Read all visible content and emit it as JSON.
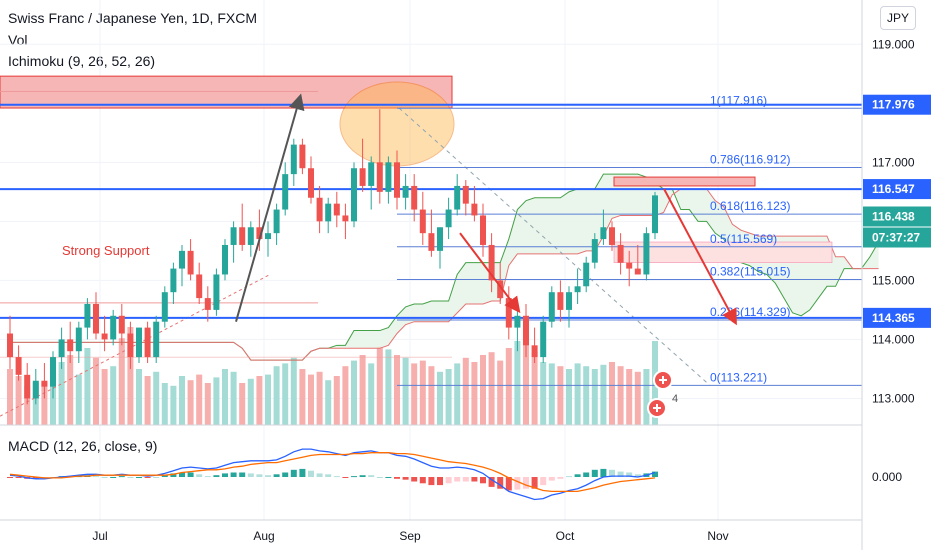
{
  "header": {
    "title": "Swiss Franc / Japanese Yen, 1D, FXCM",
    "vol_label": "Vol",
    "ichimoku_label": "Ichimoku (9, 26, 52, 26)"
  },
  "currency_button": "JPY",
  "macd_label": "MACD (12, 26, close, 9)",
  "colors": {
    "up": "#26a69a",
    "down": "#ef5350",
    "blue_line": "#2962ff",
    "cloud": "#e8f5e9",
    "annotation_red": "#e53935",
    "arrow_gray": "#555555"
  },
  "chart_data": [
    {
      "type": "candlestick",
      "title": "Swiss Franc / Japanese Yen, 1D, FXCM",
      "x_ticks": [
        "Jul",
        "Aug",
        "Sep",
        "Oct",
        "Nov"
      ],
      "y_ticks": [
        "119.000",
        "118.000",
        "117.000",
        "116.000",
        "115.000",
        "114.000",
        "113.000"
      ],
      "ylim": [
        112.55,
        119.75
      ],
      "annotation_text": "Strong Support",
      "price_labels": [
        {
          "text": "117.976",
          "value": 117.976,
          "style": "blue"
        },
        {
          "text": "116.547",
          "value": 116.547,
          "style": "blue"
        },
        {
          "text": "116.438",
          "value": 116.438,
          "style": "teal"
        },
        {
          "text": "07:37:27",
          "value": 116.15,
          "style": "teal"
        },
        {
          "text": "114.365",
          "value": 114.365,
          "style": "blue"
        }
      ],
      "horizontal_levels": [
        117.976,
        116.547,
        114.365
      ],
      "fibonacci": [
        {
          "text": "1(117.916)",
          "value": 117.916
        },
        {
          "text": "0.786(116.912)",
          "value": 116.912
        },
        {
          "text": "0.618(116.123)",
          "value": 116.123
        },
        {
          "text": "0.5(115.569)",
          "value": 115.569
        },
        {
          "text": "0.382(115.015)",
          "value": 115.015
        },
        {
          "text": "0.236(114.329)",
          "value": 114.329
        },
        {
          "text": "0(113.221)",
          "value": 113.221
        }
      ],
      "event_badge": "4",
      "candles": [
        [
          114.1,
          114.4,
          113.5,
          113.7
        ],
        [
          113.7,
          113.9,
          113.3,
          113.4
        ],
        [
          113.4,
          113.6,
          112.9,
          113.0
        ],
        [
          113.0,
          113.5,
          112.9,
          113.3
        ],
        [
          113.3,
          113.6,
          113.0,
          113.2
        ],
        [
          113.2,
          113.8,
          113.0,
          113.7
        ],
        [
          113.7,
          114.2,
          113.5,
          114.0
        ],
        [
          114.0,
          114.3,
          113.6,
          113.8
        ],
        [
          113.8,
          114.3,
          113.6,
          114.2
        ],
        [
          114.2,
          114.7,
          114.0,
          114.6
        ],
        [
          114.6,
          114.8,
          114.0,
          114.1
        ],
        [
          114.1,
          114.4,
          113.8,
          114.0
        ],
        [
          114.0,
          114.5,
          113.9,
          114.4
        ],
        [
          114.4,
          114.6,
          113.9,
          114.1
        ],
        [
          114.1,
          114.3,
          113.5,
          113.7
        ],
        [
          113.7,
          114.2,
          113.6,
          114.2
        ],
        [
          114.2,
          114.3,
          113.6,
          113.7
        ],
        [
          113.7,
          114.4,
          113.6,
          114.3
        ],
        [
          114.3,
          114.9,
          114.2,
          114.8
        ],
        [
          114.8,
          115.3,
          114.6,
          115.2
        ],
        [
          115.2,
          115.6,
          114.9,
          115.5
        ],
        [
          115.5,
          115.7,
          115.0,
          115.1
        ],
        [
          115.1,
          115.3,
          114.6,
          114.7
        ],
        [
          114.7,
          114.9,
          114.3,
          114.5
        ],
        [
          114.5,
          115.2,
          114.4,
          115.1
        ],
        [
          115.1,
          115.7,
          115.0,
          115.6
        ],
        [
          115.6,
          116.0,
          115.3,
          115.9
        ],
        [
          115.9,
          116.3,
          115.5,
          115.6
        ],
        [
          115.6,
          116.0,
          115.4,
          115.9
        ],
        [
          115.9,
          116.2,
          115.5,
          115.7
        ],
        [
          115.7,
          116.0,
          115.4,
          115.8
        ],
        [
          115.8,
          116.3,
          115.6,
          116.2
        ],
        [
          116.2,
          117.0,
          116.1,
          116.8
        ],
        [
          116.8,
          117.4,
          116.6,
          117.3
        ],
        [
          117.3,
          117.4,
          116.8,
          116.9
        ],
        [
          116.9,
          117.1,
          116.3,
          116.4
        ],
        [
          116.4,
          116.6,
          115.8,
          116.0
        ],
        [
          116.0,
          116.4,
          115.8,
          116.3
        ],
        [
          116.3,
          116.5,
          115.9,
          116.1
        ],
        [
          116.1,
          116.3,
          115.7,
          116.0
        ],
        [
          116.0,
          117.0,
          115.9,
          116.9
        ],
        [
          116.9,
          117.4,
          116.5,
          116.6
        ],
        [
          116.6,
          117.1,
          116.2,
          117.0
        ],
        [
          117.0,
          117.9,
          116.3,
          116.5
        ],
        [
          116.5,
          117.1,
          116.3,
          117.0
        ],
        [
          117.0,
          117.2,
          116.2,
          116.4
        ],
        [
          116.4,
          116.8,
          116.2,
          116.6
        ],
        [
          116.6,
          116.8,
          116.0,
          116.2
        ],
        [
          116.2,
          116.5,
          115.6,
          115.8
        ],
        [
          115.8,
          116.2,
          115.4,
          115.5
        ],
        [
          115.5,
          115.9,
          115.2,
          115.9
        ],
        [
          115.9,
          116.4,
          115.7,
          116.2
        ],
        [
          116.2,
          116.8,
          116.1,
          116.6
        ],
        [
          116.6,
          116.7,
          116.1,
          116.3
        ],
        [
          116.3,
          116.6,
          116.0,
          116.1
        ],
        [
          116.1,
          116.3,
          115.4,
          115.6
        ],
        [
          115.6,
          115.8,
          114.8,
          115.0
        ],
        [
          115.0,
          115.3,
          114.6,
          114.7
        ],
        [
          114.7,
          114.9,
          114.0,
          114.2
        ],
        [
          114.2,
          114.6,
          113.8,
          114.4
        ],
        [
          114.4,
          114.6,
          113.7,
          113.9
        ],
        [
          113.9,
          114.2,
          113.6,
          113.7
        ],
        [
          113.7,
          114.4,
          113.6,
          114.3
        ],
        [
          114.3,
          114.9,
          114.2,
          114.8
        ],
        [
          114.8,
          115.0,
          114.3,
          114.5
        ],
        [
          114.5,
          114.9,
          114.2,
          114.8
        ],
        [
          114.8,
          115.2,
          114.6,
          114.9
        ],
        [
          114.9,
          115.4,
          114.8,
          115.3
        ],
        [
          115.3,
          115.8,
          115.2,
          115.7
        ],
        [
          115.7,
          116.2,
          115.6,
          115.9
        ],
        [
          115.9,
          116.0,
          115.5,
          115.6
        ],
        [
          115.6,
          115.8,
          115.1,
          115.3
        ],
        [
          115.3,
          115.5,
          114.9,
          115.2
        ],
        [
          115.2,
          115.6,
          115.1,
          115.1
        ],
        [
          115.1,
          115.9,
          115.0,
          115.8
        ],
        [
          115.8,
          116.5,
          115.7,
          116.44
        ]
      ],
      "volume": [
        0.4,
        0.35,
        0.28,
        0.3,
        0.3,
        0.32,
        0.45,
        0.5,
        0.36,
        0.55,
        0.48,
        0.4,
        0.42,
        0.62,
        0.7,
        0.4,
        0.35,
        0.38,
        0.3,
        0.28,
        0.35,
        0.32,
        0.36,
        0.3,
        0.34,
        0.4,
        0.38,
        0.3,
        0.33,
        0.35,
        0.36,
        0.42,
        0.44,
        0.48,
        0.4,
        0.36,
        0.38,
        0.32,
        0.35,
        0.42,
        0.46,
        0.5,
        0.44,
        0.56,
        0.54,
        0.5,
        0.48,
        0.44,
        0.46,
        0.42,
        0.38,
        0.4,
        0.44,
        0.48,
        0.45,
        0.5,
        0.52,
        0.46,
        0.55,
        0.6,
        0.58,
        0.52,
        0.45,
        0.44,
        0.42,
        0.4,
        0.44,
        0.42,
        0.4,
        0.43,
        0.45,
        0.42,
        0.4,
        0.38,
        0.4,
        0.6
      ],
      "macd": [
        0.02,
        0.01,
        -0.01,
        -0.02,
        -0.02,
        -0.01,
        0.0,
        0.01,
        0.02,
        0.03,
        0.03,
        0.02,
        0.02,
        0.03,
        0.02,
        0.02,
        0.01,
        0.02,
        0.04,
        0.07,
        0.1,
        0.11,
        0.1,
        0.09,
        0.1,
        0.13,
        0.16,
        0.17,
        0.18,
        0.18,
        0.18,
        0.19,
        0.23,
        0.28,
        0.31,
        0.31,
        0.29,
        0.28,
        0.26,
        0.24,
        0.27,
        0.28,
        0.29,
        0.27,
        0.27,
        0.24,
        0.23,
        0.2,
        0.16,
        0.12,
        0.1,
        0.1,
        0.11,
        0.1,
        0.08,
        0.04,
        -0.03,
        -0.09,
        -0.16,
        -0.19,
        -0.22,
        -0.25,
        -0.24,
        -0.2,
        -0.18,
        -0.15,
        -0.13,
        -0.09,
        -0.04,
        0.0,
        0.01,
        0.01,
        0.01,
        0.0,
        0.02,
        0.05
      ],
      "signal": [
        0.03,
        0.02,
        0.01,
        0.0,
        -0.01,
        -0.01,
        -0.01,
        0.0,
        0.01,
        0.01,
        0.02,
        0.02,
        0.02,
        0.02,
        0.02,
        0.02,
        0.02,
        0.02,
        0.02,
        0.03,
        0.05,
        0.06,
        0.07,
        0.08,
        0.08,
        0.09,
        0.11,
        0.12,
        0.14,
        0.15,
        0.16,
        0.16,
        0.18,
        0.2,
        0.22,
        0.24,
        0.25,
        0.25,
        0.25,
        0.25,
        0.26,
        0.26,
        0.27,
        0.27,
        0.27,
        0.26,
        0.26,
        0.25,
        0.23,
        0.21,
        0.19,
        0.17,
        0.16,
        0.15,
        0.13,
        0.11,
        0.08,
        0.04,
        -0.01,
        -0.05,
        -0.09,
        -0.12,
        -0.15,
        -0.16,
        -0.16,
        -0.16,
        -0.16,
        -0.14,
        -0.12,
        -0.09,
        -0.07,
        -0.05,
        -0.04,
        -0.03,
        -0.02,
        -0.01
      ],
      "macd_ytick": "0.000"
    }
  ]
}
